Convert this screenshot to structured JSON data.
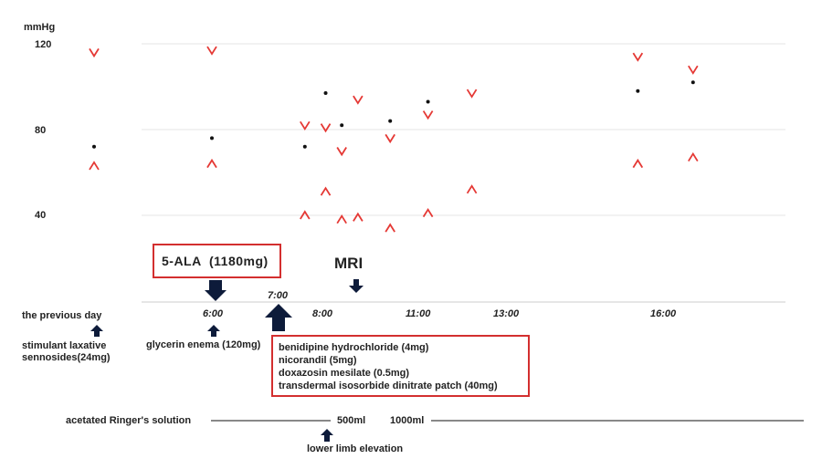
{
  "chart_data": {
    "type": "scatter",
    "ylabel": "mmHg",
    "y_ticks": [
      {
        "value": 120,
        "label": "120"
      },
      {
        "value": 80,
        "label": "80"
      },
      {
        "value": 40,
        "label": "40"
      }
    ],
    "ylim": [
      0,
      120
    ],
    "x_ticks": [
      {
        "x": 4.2,
        "label": "the previous day"
      },
      {
        "x": 6.0,
        "label": "6:00"
      },
      {
        "x": 7.0,
        "label": "7:00"
      },
      {
        "x": 8.0,
        "label": "8:00"
      },
      {
        "x": 11.0,
        "label": "11:00"
      },
      {
        "x": 13.0,
        "label": "13:00"
      },
      {
        "x": 16.0,
        "label": "16:00"
      }
    ],
    "grid": true,
    "series": [
      {
        "marker": "v",
        "color": "#e53935",
        "points": [
          [
            4.2,
            116
          ],
          [
            6.0,
            117
          ],
          [
            7.6,
            82
          ],
          [
            8.1,
            81
          ],
          [
            8.6,
            70
          ],
          [
            9.1,
            94
          ],
          [
            10.1,
            76
          ],
          [
            11.2,
            87
          ],
          [
            12.2,
            97
          ],
          [
            15.5,
            114
          ],
          [
            16.6,
            108
          ]
        ]
      },
      {
        "marker": "^",
        "color": "#e53935",
        "points": [
          [
            4.2,
            63
          ],
          [
            6.0,
            64
          ],
          [
            7.6,
            40
          ],
          [
            8.1,
            51
          ],
          [
            8.6,
            38
          ],
          [
            9.1,
            39
          ],
          [
            10.1,
            34
          ],
          [
            11.2,
            41
          ],
          [
            12.2,
            52
          ],
          [
            15.5,
            64
          ],
          [
            16.6,
            67
          ]
        ]
      },
      {
        "marker": "dot",
        "color": "#111111",
        "points": [
          [
            4.2,
            72
          ],
          [
            6.0,
            76
          ],
          [
            7.6,
            72
          ],
          [
            8.1,
            97
          ],
          [
            8.6,
            82
          ],
          [
            10.1,
            84
          ],
          [
            11.2,
            93
          ],
          [
            15.5,
            98
          ],
          [
            16.6,
            102
          ]
        ]
      }
    ]
  },
  "annotations": {
    "ala_label": "5-ALA  (1180mg)",
    "mri_label": "MRI",
    "laxative": [
      "stimulant laxative",
      "sennosides(24mg)"
    ],
    "enema": "glycerin enema (120mg)",
    "medications": [
      "benidipine hydrochloride (4mg)",
      "nicorandil (5mg)",
      "doxazosin mesilate (0.5mg)",
      "transdermal isosorbide dinitrate patch (40mg)"
    ],
    "ringer": "acetated Ringer's solution",
    "ringer_500": "500ml",
    "ringer_1000": "1000ml",
    "limb": "lower limb elevation"
  },
  "colors": {
    "accent": "#e53935",
    "box": "#d32f2f",
    "arrow": "#0d1b3a",
    "grid": "#e6e6e6"
  }
}
